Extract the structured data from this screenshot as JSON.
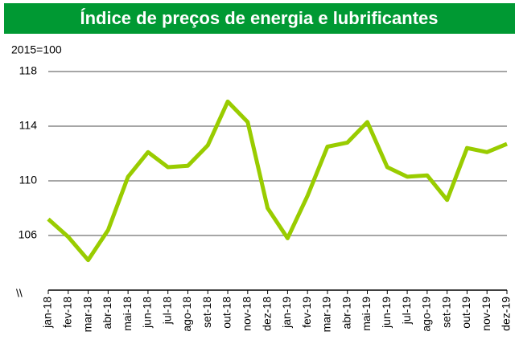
{
  "chart_data": {
    "type": "line",
    "title": "Índice de preços de energia e lubrificantes",
    "y_label": "2015=100",
    "axis_break": "\\\\",
    "categories": [
      "jan-18",
      "fev-18",
      "mar-18",
      "abr-18",
      "mai-18",
      "jun-18",
      "jul-18",
      "ago-18",
      "set-18",
      "out-18",
      "nov-18",
      "dez-18",
      "jan-19",
      "fev-19",
      "mar-19",
      "abr-19",
      "mai-19",
      "jun-19",
      "jul-19",
      "ago-19",
      "set-19",
      "out-19",
      "nov-19",
      "dez-19"
    ],
    "series": [
      {
        "color": "#99cc00",
        "values": [
          107.2,
          105.9,
          104.2,
          106.4,
          110.3,
          112.1,
          111.0,
          111.1,
          112.6,
          115.8,
          114.3,
          108.0,
          105.8,
          108.9,
          112.5,
          112.8,
          114.3,
          111.0,
          110.3,
          110.4,
          108.6,
          112.4,
          112.1,
          112.7
        ]
      }
    ],
    "ylim": [
      102,
      118
    ],
    "yticks": [
      106,
      110,
      114,
      118
    ],
    "grid": true
  }
}
